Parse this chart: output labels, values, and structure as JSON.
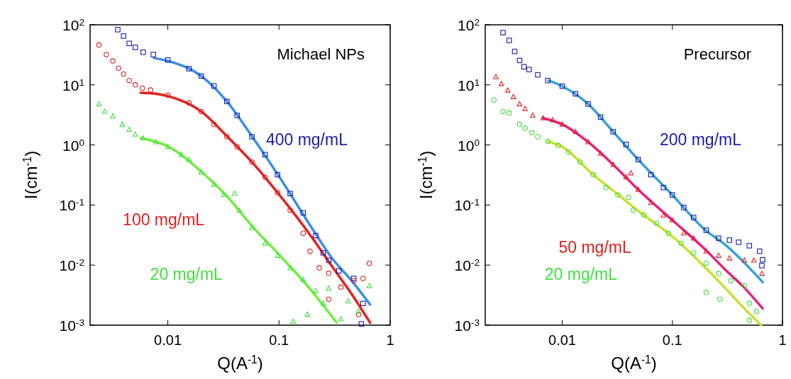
{
  "chart_data": [
    {
      "type": "scatter",
      "xlabel": "Q(A$^{-1}$)",
      "ylabel": "I(cm$^{-1}$)",
      "log": "xy",
      "xlim": [
        0.002,
        1
      ],
      "ylim": [
        0.001,
        100
      ],
      "xticks": [
        0.01,
        0.1,
        1
      ],
      "yticks": [
        {
          "value": 0.001,
          "label": "10$^{-3}$"
        },
        {
          "value": 0.01,
          "label": "10$^{-2}$"
        },
        {
          "value": 0.1,
          "label": "10$^{-1}$"
        },
        {
          "value": 1,
          "label": "10$^{0}$"
        },
        {
          "value": 10,
          "label": "10$^{1}$"
        },
        {
          "value": 100,
          "label": "10$^{2}$"
        }
      ],
      "annotations": [
        "Michael NPs"
      ],
      "grid": false,
      "legend": false,
      "series": [
        {
          "name": "400 mg/mL",
          "marker": "square",
          "color": "#1a1aa8",
          "x": [
            0.00355,
            0.004,
            0.0045,
            0.0051,
            0.006,
            0.0074,
            0.01,
            0.0155,
            0.02,
            0.026,
            0.034,
            0.042,
            0.057,
            0.075,
            0.097,
            0.126,
            0.165,
            0.214,
            0.25,
            0.28,
            0.345,
            0.47,
            0.57,
            0.55
          ],
          "values": [
            83,
            65,
            49,
            42,
            35,
            32,
            26,
            18.6,
            14,
            9.6,
            5.3,
            3.1,
            1.37,
            0.69,
            0.32,
            0.155,
            0.074,
            0.031,
            0.016,
            0.012,
            0.008,
            0.006,
            0.0023,
            0.00105
          ]
        },
        {
          "name": "100 mg/mL",
          "marker": "circle",
          "color": "#e02020",
          "x": [
            0.0024,
            0.0028,
            0.0032,
            0.0036,
            0.004,
            0.0045,
            0.0051,
            0.0059,
            0.007,
            0.01,
            0.0155,
            0.02,
            0.026,
            0.034,
            0.042,
            0.057,
            0.075,
            0.097,
            0.126,
            0.165,
            0.19,
            0.23,
            0.28,
            0.28,
            0.36,
            0.47,
            0.57,
            0.65,
            0.52
          ],
          "values": [
            46,
            32,
            25,
            19,
            15.2,
            11.8,
            10,
            8.8,
            8.2,
            6.7,
            5,
            3.6,
            2.2,
            1.37,
            0.93,
            0.52,
            0.29,
            0.16,
            0.082,
            0.034,
            0.017,
            0.009,
            0.0073,
            0.0027,
            0.0043,
            0.0055,
            0.006,
            0.0107,
            0.0015
          ]
        },
        {
          "name": "20 mg/mL",
          "marker": "triangle",
          "color": "#40e040",
          "x": [
            0.0024,
            0.0027,
            0.0032,
            0.0039,
            0.0045,
            0.0051,
            0.006,
            0.0078,
            0.01,
            0.0132,
            0.0155,
            0.02,
            0.026,
            0.032,
            0.04,
            0.044,
            0.057,
            0.075,
            0.097,
            0.126,
            0.165,
            0.214,
            0.25,
            0.18,
            0.28,
            0.42,
            0.65,
            0.134,
            0.36,
            0.52
          ],
          "values": [
            4.8,
            3.6,
            3,
            2.2,
            1.8,
            1.5,
            1.3,
            1.12,
            0.93,
            0.69,
            0.57,
            0.35,
            0.22,
            0.148,
            0.155,
            0.081,
            0.042,
            0.023,
            0.0144,
            0.0089,
            0.0057,
            0.0037,
            0.0023,
            0.0015,
            0.0041,
            0.0025,
            0.0045,
            0.00115,
            0.00126,
            0.0017
          ]
        },
        {
          "type": "line",
          "color": "#3a8ee8",
          "x": [
            0.0075,
            0.01,
            0.02,
            0.034,
            0.057,
            0.1,
            0.2,
            0.3,
            0.45,
            0.66
          ],
          "values": [
            28,
            25,
            14,
            5.3,
            1.4,
            0.3,
            0.04,
            0.013,
            0.0055,
            0.0022
          ]
        },
        {
          "type": "line",
          "color": "#e82020",
          "x": [
            0.0057,
            0.0075,
            0.01,
            0.02,
            0.034,
            0.057,
            0.1,
            0.2,
            0.3,
            0.45,
            0.66
          ],
          "values": [
            7.4,
            7.2,
            6.5,
            3.6,
            1.4,
            0.52,
            0.15,
            0.028,
            0.0095,
            0.0033,
            0.0011
          ]
        },
        {
          "type": "line",
          "color": "#70ee40",
          "x": [
            0.0057,
            0.01,
            0.02,
            0.034,
            0.057,
            0.1,
            0.2,
            0.33
          ],
          "values": [
            1.3,
            0.95,
            0.36,
            0.14,
            0.045,
            0.015,
            0.0036,
            0.0011
          ]
        }
      ]
    },
    {
      "type": "scatter",
      "xlabel": "Q(A$^{-1}$)",
      "ylabel": "I(cm$^{-1}$)",
      "log": "xy",
      "xlim": [
        0.002,
        1
      ],
      "ylim": [
        0.001,
        100
      ],
      "xticks": [
        0.01,
        0.1,
        1
      ],
      "yticks": [
        {
          "value": 0.001,
          "label": "10$^{-3}$"
        },
        {
          "value": 0.01,
          "label": "10$^{-2}$"
        },
        {
          "value": 0.1,
          "label": "10$^{-1}$"
        },
        {
          "value": 1,
          "label": "10$^{0}$"
        },
        {
          "value": 10,
          "label": "10$^{1}$"
        },
        {
          "value": 100,
          "label": "10$^{2}$"
        }
      ],
      "annotations": [
        "Precursor"
      ],
      "grid": false,
      "legend": false,
      "series": [
        {
          "name": "200 mg/mL",
          "marker": "square",
          "color": "#1a1aa8",
          "x": [
            0.0029,
            0.0033,
            0.0037,
            0.0041,
            0.0045,
            0.005,
            0.006,
            0.0074,
            0.01,
            0.0132,
            0.0172,
            0.0223,
            0.029,
            0.038,
            0.049,
            0.064,
            0.083,
            0.1,
            0.127,
            0.156,
            0.203,
            0.263,
            0.33,
            0.4,
            0.5,
            0.62,
            0.66,
            0.65
          ],
          "values": [
            74,
            55,
            36,
            25.5,
            20,
            18,
            14.7,
            11.8,
            9.5,
            7.1,
            4.8,
            2.9,
            1.66,
            1.02,
            0.57,
            0.32,
            0.195,
            0.147,
            0.091,
            0.062,
            0.038,
            0.028,
            0.026,
            0.024,
            0.021,
            0.017,
            0.0123,
            0.0098
          ]
        },
        {
          "name": "50 mg/mL",
          "marker": "triangle",
          "color": "#e02020",
          "x": [
            0.0025,
            0.0028,
            0.0032,
            0.0036,
            0.0041,
            0.0046,
            0.0054,
            0.0067,
            0.0082,
            0.01,
            0.0132,
            0.0172,
            0.0223,
            0.029,
            0.038,
            0.042,
            0.049,
            0.064,
            0.083,
            0.1,
            0.127,
            0.156,
            0.203,
            0.263,
            0.33,
            0.45,
            0.55,
            0.65
          ],
          "values": [
            13.5,
            10.4,
            8.1,
            6.3,
            4.8,
            4,
            3.1,
            2.8,
            2.6,
            2.2,
            1.66,
            1.12,
            0.72,
            0.47,
            0.29,
            0.34,
            0.18,
            0.11,
            0.067,
            0.056,
            0.034,
            0.028,
            0.017,
            0.0144,
            0.013,
            0.012,
            0.012,
            0.0072
          ]
        },
        {
          "name": "20 mg/mL",
          "marker": "circle",
          "color": "#40e040",
          "x": [
            0.0024,
            0.0029,
            0.0033,
            0.0041,
            0.0046,
            0.0053,
            0.006,
            0.0074,
            0.0092,
            0.0113,
            0.0145,
            0.0191,
            0.025,
            0.032,
            0.04,
            0.044,
            0.055,
            0.072,
            0.092,
            0.12,
            0.156,
            0.203,
            0.203,
            0.263,
            0.27,
            0.34,
            0.45,
            0.5,
            0.58,
            0.5
          ],
          "values": [
            5.6,
            3.6,
            3.4,
            2.2,
            1.9,
            1.6,
            1.37,
            1.15,
            0.98,
            0.76,
            0.52,
            0.32,
            0.195,
            0.147,
            0.134,
            0.082,
            0.068,
            0.05,
            0.034,
            0.023,
            0.016,
            0.0107,
            0.0035,
            0.0072,
            0.0027,
            0.0055,
            0.0045,
            0.0023,
            0.0017,
            0.0012
          ]
        },
        {
          "type": "line",
          "color": "#3aa0d8",
          "x": [
            0.0075,
            0.01,
            0.0172,
            0.029,
            0.049,
            0.1,
            0.2,
            0.3,
            0.45,
            0.66
          ],
          "values": [
            11.8,
            9.5,
            4.8,
            1.66,
            0.57,
            0.147,
            0.038,
            0.022,
            0.011,
            0.0052
          ]
        },
        {
          "type": "line",
          "color": "#e8207a",
          "x": [
            0.0067,
            0.01,
            0.0172,
            0.029,
            0.049,
            0.1,
            0.2,
            0.3,
            0.45,
            0.66
          ],
          "values": [
            2.8,
            2.2,
            1.12,
            0.47,
            0.18,
            0.056,
            0.018,
            0.0085,
            0.0042,
            0.0019
          ]
        },
        {
          "type": "line",
          "color": "#c8e030",
          "x": [
            0.0074,
            0.01,
            0.0191,
            0.032,
            0.055,
            0.1,
            0.2,
            0.3,
            0.45,
            0.64
          ],
          "values": [
            1.15,
            0.93,
            0.32,
            0.15,
            0.068,
            0.03,
            0.009,
            0.0042,
            0.0019,
            0.001
          ]
        }
      ]
    }
  ]
}
